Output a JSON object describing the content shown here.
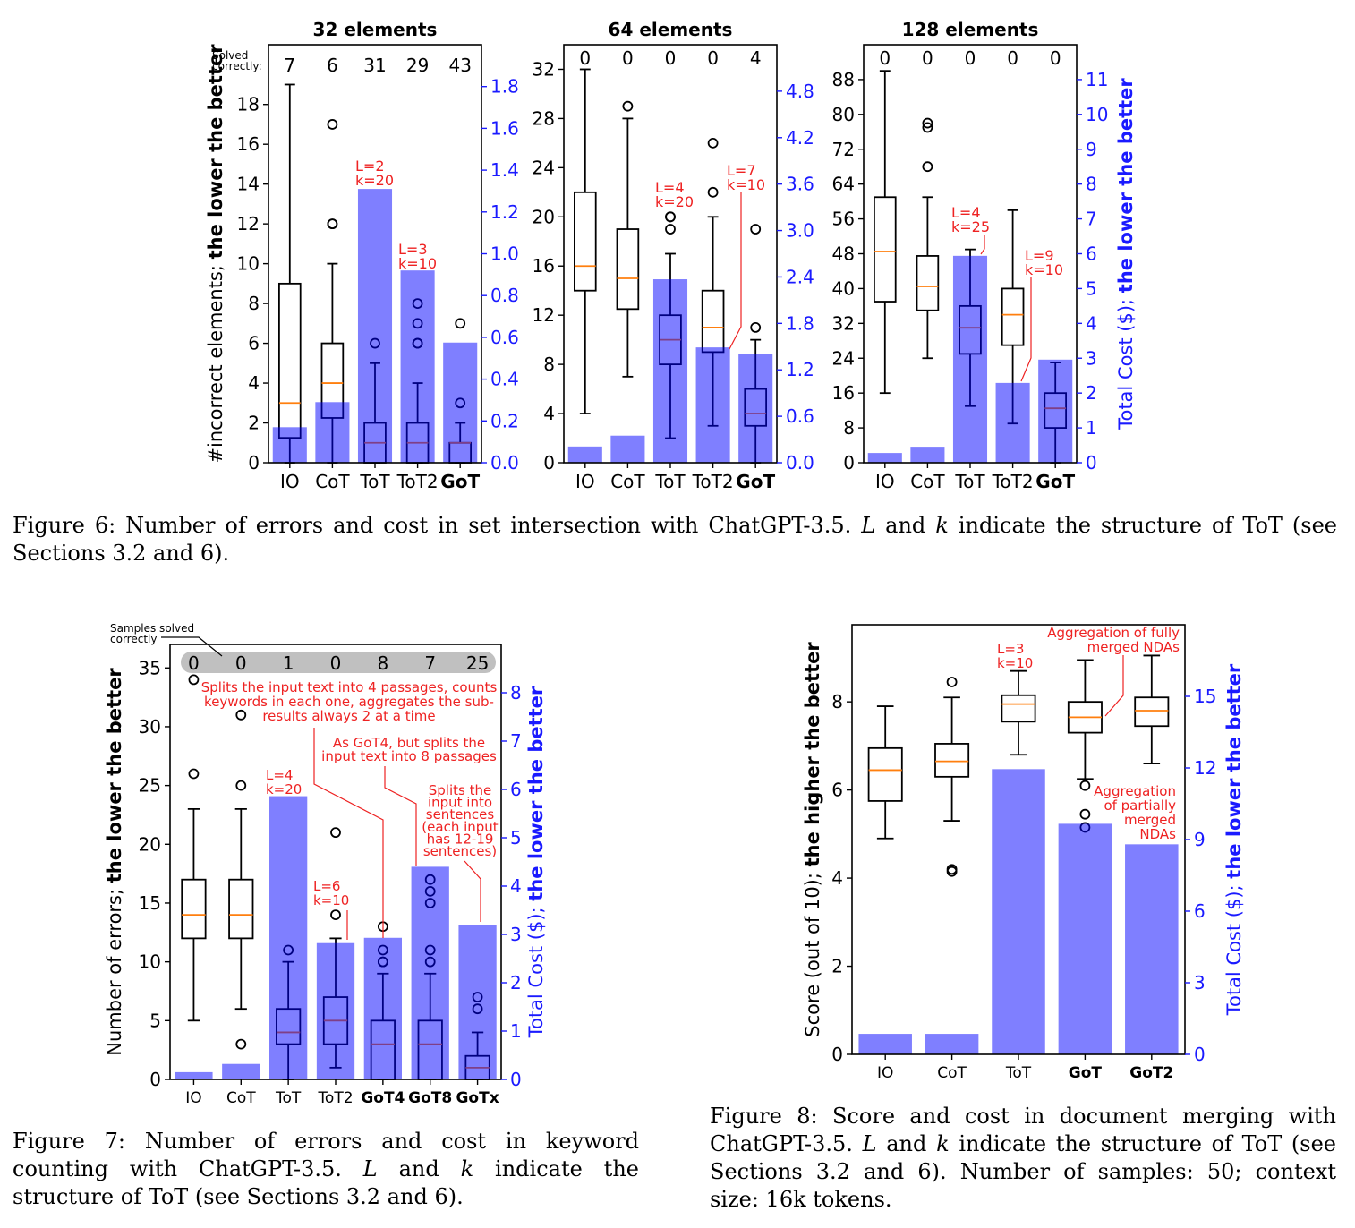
{
  "colors": {
    "bar": "#0000ff",
    "bar_alpha": 0.5,
    "median": "#ff7f0e",
    "annotation": "#ee2222",
    "right_axis": "#1a1aff",
    "solved_band": "#c0c0c0"
  },
  "chart_data": [
    {
      "id": "fig6a",
      "type": "bar+box",
      "title": "32 elements",
      "categories": [
        "IO",
        "CoT",
        "ToT",
        "ToT2",
        "GoT"
      ],
      "highlight": [
        "GoT"
      ],
      "ylabel": "#incorrect elements; ",
      "ylabel_bold": "the lower the better",
      "ylim": [
        0,
        21
      ],
      "yticks": [
        0,
        2,
        4,
        6,
        8,
        10,
        12,
        14,
        16,
        18
      ],
      "y2label": "",
      "y2label_bold": "",
      "y2lim": [
        0,
        2.0
      ],
      "y2ticks": [
        0.0,
        0.2,
        0.4,
        0.6,
        0.8,
        1.0,
        1.2,
        1.4,
        1.6,
        1.8
      ],
      "y2decimals": 1,
      "solved_label": [
        "Solved",
        "correctly:"
      ],
      "solved": [
        7,
        6,
        31,
        29,
        43
      ],
      "cost": [
        0.17,
        0.29,
        1.31,
        0.92,
        0.575
      ],
      "boxes": [
        {
          "lo": 0,
          "q1": 1.25,
          "med": 3,
          "q3": 9,
          "hi": 19,
          "out": []
        },
        {
          "lo": 0,
          "q1": 2.25,
          "med": 4,
          "q3": 6,
          "hi": 10,
          "out": [
            12,
            12,
            17
          ]
        },
        {
          "lo": 0,
          "q1": 0,
          "med": 1,
          "q3": 2,
          "hi": 5,
          "out": [
            6
          ]
        },
        {
          "lo": 0,
          "q1": 0,
          "med": 1,
          "q3": 2,
          "hi": 4,
          "out": [
            6,
            6,
            7,
            8
          ]
        },
        {
          "lo": 0,
          "q1": 0,
          "med": 1,
          "q3": 1,
          "hi": 2,
          "out": [
            3,
            7
          ]
        }
      ],
      "annotations": [
        [
          "L=2",
          "k=20"
        ],
        [
          "L=3",
          "k=10"
        ]
      ]
    },
    {
      "id": "fig6b",
      "type": "bar+box",
      "title": "64 elements",
      "categories": [
        "IO",
        "CoT",
        "ToT",
        "ToT2",
        "GoT"
      ],
      "highlight": [
        "GoT"
      ],
      "ylabel": "",
      "ylabel_bold": "",
      "ylim": [
        0,
        34
      ],
      "yticks": [
        0,
        4,
        8,
        12,
        16,
        20,
        24,
        28,
        32
      ],
      "y2label": "",
      "y2label_bold": "",
      "y2lim": [
        0,
        5.4
      ],
      "y2ticks": [
        0.0,
        0.6,
        1.2,
        1.8,
        2.4,
        3.0,
        3.6,
        4.2,
        4.8
      ],
      "y2decimals": 1,
      "solved": [
        0,
        0,
        0,
        0,
        4
      ],
      "cost": [
        0.21,
        0.35,
        2.37,
        1.49,
        1.4
      ],
      "boxes": [
        {
          "lo": 4,
          "q1": 14,
          "med": 16,
          "q3": 22,
          "hi": 32,
          "out": []
        },
        {
          "lo": 7,
          "q1": 12.5,
          "med": 15,
          "q3": 19,
          "hi": 28,
          "out": [
            29
          ]
        },
        {
          "lo": 2,
          "q1": 8,
          "med": 10,
          "q3": 12,
          "hi": 17,
          "out": [
            19,
            20,
            20
          ]
        },
        {
          "lo": 3,
          "q1": 9,
          "med": 11,
          "q3": 14,
          "hi": 20,
          "out": [
            22,
            26
          ]
        },
        {
          "lo": 0,
          "q1": 3,
          "med": 4,
          "q3": 6,
          "hi": 10,
          "out": [
            11,
            19
          ]
        }
      ],
      "annotations": [
        [
          "L=4",
          "k=20"
        ],
        [
          "L=7",
          "k=10"
        ]
      ]
    },
    {
      "id": "fig6c",
      "type": "bar+box",
      "title": "128 elements",
      "categories": [
        "IO",
        "CoT",
        "ToT",
        "ToT2",
        "GoT"
      ],
      "highlight": [
        "GoT"
      ],
      "ylabel": "",
      "ylabel_bold": "",
      "ylim": [
        0,
        96
      ],
      "yticks": [
        0,
        8,
        16,
        24,
        32,
        40,
        48,
        56,
        64,
        72,
        80,
        88
      ],
      "y2label": "Total Cost ($); ",
      "y2label_bold": "the lower the better",
      "y2lim": [
        0,
        12
      ],
      "y2ticks": [
        0,
        1,
        2,
        3,
        4,
        5,
        6,
        7,
        8,
        9,
        10,
        11
      ],
      "y2decimals": 0,
      "solved": [
        0,
        0,
        0,
        0,
        0
      ],
      "cost": [
        0.28,
        0.46,
        5.94,
        2.29,
        2.96
      ],
      "boxes": [
        {
          "lo": 16,
          "q1": 37,
          "med": 48.5,
          "q3": 61,
          "hi": 90,
          "out": []
        },
        {
          "lo": 24,
          "q1": 35,
          "med": 40.5,
          "q3": 47.5,
          "hi": 61,
          "out": [
            68,
            77,
            78
          ]
        },
        {
          "lo": 13,
          "q1": 25,
          "med": 31,
          "q3": 36,
          "hi": 49,
          "out": []
        },
        {
          "lo": 9,
          "q1": 27,
          "med": 34,
          "q3": 40,
          "hi": 58,
          "out": []
        },
        {
          "lo": 0,
          "q1": 8,
          "med": 12.5,
          "q3": 16,
          "hi": 23,
          "out": []
        }
      ],
      "annotations": [
        [
          "L=4",
          "k=25"
        ],
        [
          "L=9",
          "k=10"
        ]
      ]
    },
    {
      "id": "fig7",
      "type": "bar+box",
      "title": "",
      "categories": [
        "IO",
        "CoT",
        "ToT",
        "ToT2",
        "GoT4",
        "GoT8",
        "GoTx"
      ],
      "highlight": [
        "GoT4",
        "GoT8",
        "GoTx"
      ],
      "ylabel": "Number of errors; ",
      "ylabel_bold": "the lower the better",
      "ylim": [
        0,
        37
      ],
      "yticks": [
        0,
        5,
        10,
        15,
        20,
        25,
        30,
        35
      ],
      "y2label": "Total Cost ($); ",
      "y2label_bold": "the lower the better",
      "y2lim": [
        0,
        9
      ],
      "y2ticks": [
        0,
        1,
        2,
        3,
        4,
        5,
        6,
        7,
        8
      ],
      "y2decimals": 0,
      "solved_label": [
        "Samples solved",
        "correctly"
      ],
      "solved": [
        0,
        0,
        1,
        0,
        8,
        7,
        25
      ],
      "cost": [
        0.15,
        0.32,
        5.86,
        2.82,
        2.93,
        4.4,
        3.19
      ],
      "boxes": [
        {
          "lo": 5,
          "q1": 12,
          "med": 14,
          "q3": 17,
          "hi": 23,
          "out": [
            26,
            34
          ]
        },
        {
          "lo": 6,
          "q1": 12,
          "med": 14,
          "q3": 17,
          "hi": 23,
          "out": [
            3,
            25,
            31
          ]
        },
        {
          "lo": 0,
          "q1": 3,
          "med": 4,
          "q3": 6,
          "hi": 10,
          "out": [
            11
          ]
        },
        {
          "lo": 1,
          "q1": 3,
          "med": 5,
          "q3": 7,
          "hi": 12,
          "out": [
            14,
            21
          ]
        },
        {
          "lo": 0,
          "q1": 0,
          "med": 3,
          "q3": 5,
          "hi": 9,
          "out": [
            10,
            10,
            11,
            13
          ]
        },
        {
          "lo": 0,
          "q1": 0,
          "med": 3,
          "q3": 5,
          "hi": 9,
          "out": [
            10,
            11,
            15,
            16,
            17
          ]
        },
        {
          "lo": 0,
          "q1": 0,
          "med": 1,
          "q3": 2,
          "hi": 4,
          "out": [
            6,
            7
          ]
        }
      ],
      "annotations": [
        [
          "Splits the input text into 4 passages, counts",
          "keywords in each one, aggregates the sub-",
          "results always 2 at a time"
        ],
        [
          "As GoT4, but splits the",
          "input text into 8 passages"
        ],
        [
          "Splits the",
          "input into",
          "sentences",
          "(each input",
          "has 12-19",
          "sentences)"
        ],
        [
          "L=4",
          "k=20"
        ],
        [
          "L=6",
          "k=10"
        ]
      ]
    },
    {
      "id": "fig8",
      "type": "bar+box",
      "title": "",
      "categories": [
        "IO",
        "CoT",
        "ToT",
        "GoT",
        "GoT2"
      ],
      "highlight": [
        "GoT",
        "GoT2"
      ],
      "ylabel": "Score (out of 10); ",
      "ylabel_bold": "the higher the better",
      "ylim": [
        0,
        9.75
      ],
      "yticks": [
        0,
        2,
        4,
        6,
        8
      ],
      "y2label": "Total Cost ($); ",
      "y2label_bold": "the lower the better",
      "y2lim": [
        0,
        18
      ],
      "y2ticks": [
        0,
        3,
        6,
        9,
        12,
        15
      ],
      "y2decimals": 0,
      "cost": [
        0.86,
        0.86,
        11.95,
        9.66,
        8.8
      ],
      "boxes": [
        {
          "lo": 4.9,
          "q1": 5.75,
          "med": 6.45,
          "q3": 6.95,
          "hi": 7.9,
          "out": []
        },
        {
          "lo": 5.3,
          "q1": 6.3,
          "med": 6.65,
          "q3": 7.05,
          "hi": 8.1,
          "out": [
            4.15,
            4.2,
            8.45
          ]
        },
        {
          "lo": 6.8,
          "q1": 7.55,
          "med": 7.95,
          "q3": 8.15,
          "hi": 8.7,
          "out": []
        },
        {
          "lo": 6.25,
          "q1": 7.3,
          "med": 7.65,
          "q3": 8.0,
          "hi": 8.95,
          "out": [
            5.15,
            5.45,
            6.1
          ]
        },
        {
          "lo": 6.6,
          "q1": 7.45,
          "med": 7.8,
          "q3": 8.1,
          "hi": 9.05,
          "out": []
        }
      ],
      "annotations": [
        [
          "L=3",
          "k=10"
        ],
        [
          "Aggregation of fully",
          "merged NDAs"
        ],
        [
          "Aggregation",
          "of partially",
          "merged",
          "NDAs"
        ]
      ]
    }
  ],
  "captions": {
    "fig6": [
      {
        "t": "Figure 6: Number of errors and cost in set intersection with ChatGPT-3.5. "
      },
      {
        "t": "L",
        "i": true
      },
      {
        "t": " and "
      },
      {
        "t": "k",
        "i": true
      },
      {
        "t": " indicate the structure of ToT (see Sections 3.2 and 6)."
      }
    ],
    "fig7": [
      {
        "t": "Figure 7: Number of errors and cost in keyword counting with ChatGPT-3.5. "
      },
      {
        "t": "L",
        "i": true
      },
      {
        "t": " and "
      },
      {
        "t": "k",
        "i": true
      },
      {
        "t": " indicate the structure of ToT (see Sections 3.2 and 6)."
      }
    ],
    "fig8": [
      {
        "t": "Figure 8: Score and cost in document merging with ChatGPT-3.5. "
      },
      {
        "t": "L",
        "i": true
      },
      {
        "t": " and "
      },
      {
        "t": "k",
        "i": true
      },
      {
        "t": " indicate the structure of ToT (see Sections 3.2 and 6). Number of samples: 50; context size: 16k tokens."
      }
    ]
  }
}
